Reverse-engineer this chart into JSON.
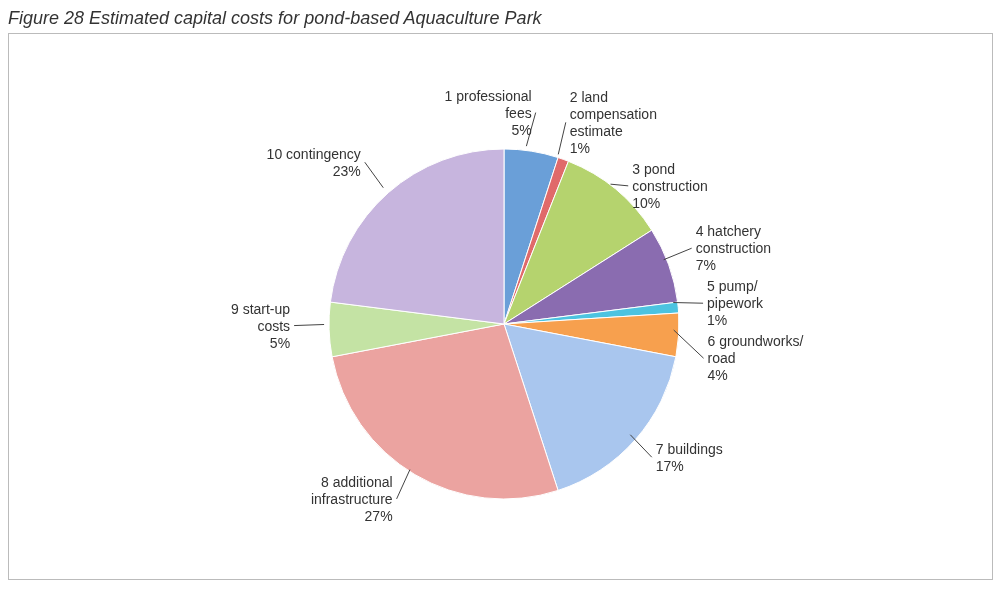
{
  "chart_data": {
    "type": "pie",
    "title": "Figure 28 Estimated capital costs for pond-based Aquaculture Park",
    "categories": [
      "1 professional fees",
      "2 land compensation estimate",
      "3 pond construction",
      "4 hatchery construction",
      "5 pump/ pipework",
      "6 groundworks/ road",
      "7 buildings",
      "8 additional infrastructure",
      "9 start-up costs",
      "10 contingency"
    ],
    "values": [
      5,
      1,
      10,
      7,
      1,
      4,
      17,
      27,
      5,
      23
    ],
    "value_labels": [
      "5%",
      "1%",
      "10%",
      "7%",
      "1%",
      "4%",
      "17%",
      "27%",
      "5%",
      "23%"
    ],
    "colors": [
      "#6a9fd8",
      "#e06a6a",
      "#b5d36e",
      "#8a6cb0",
      "#4cc3e0",
      "#f7a04e",
      "#a9c6ee",
      "#eba3a0",
      "#c4e3a4",
      "#c7b5de"
    ]
  }
}
